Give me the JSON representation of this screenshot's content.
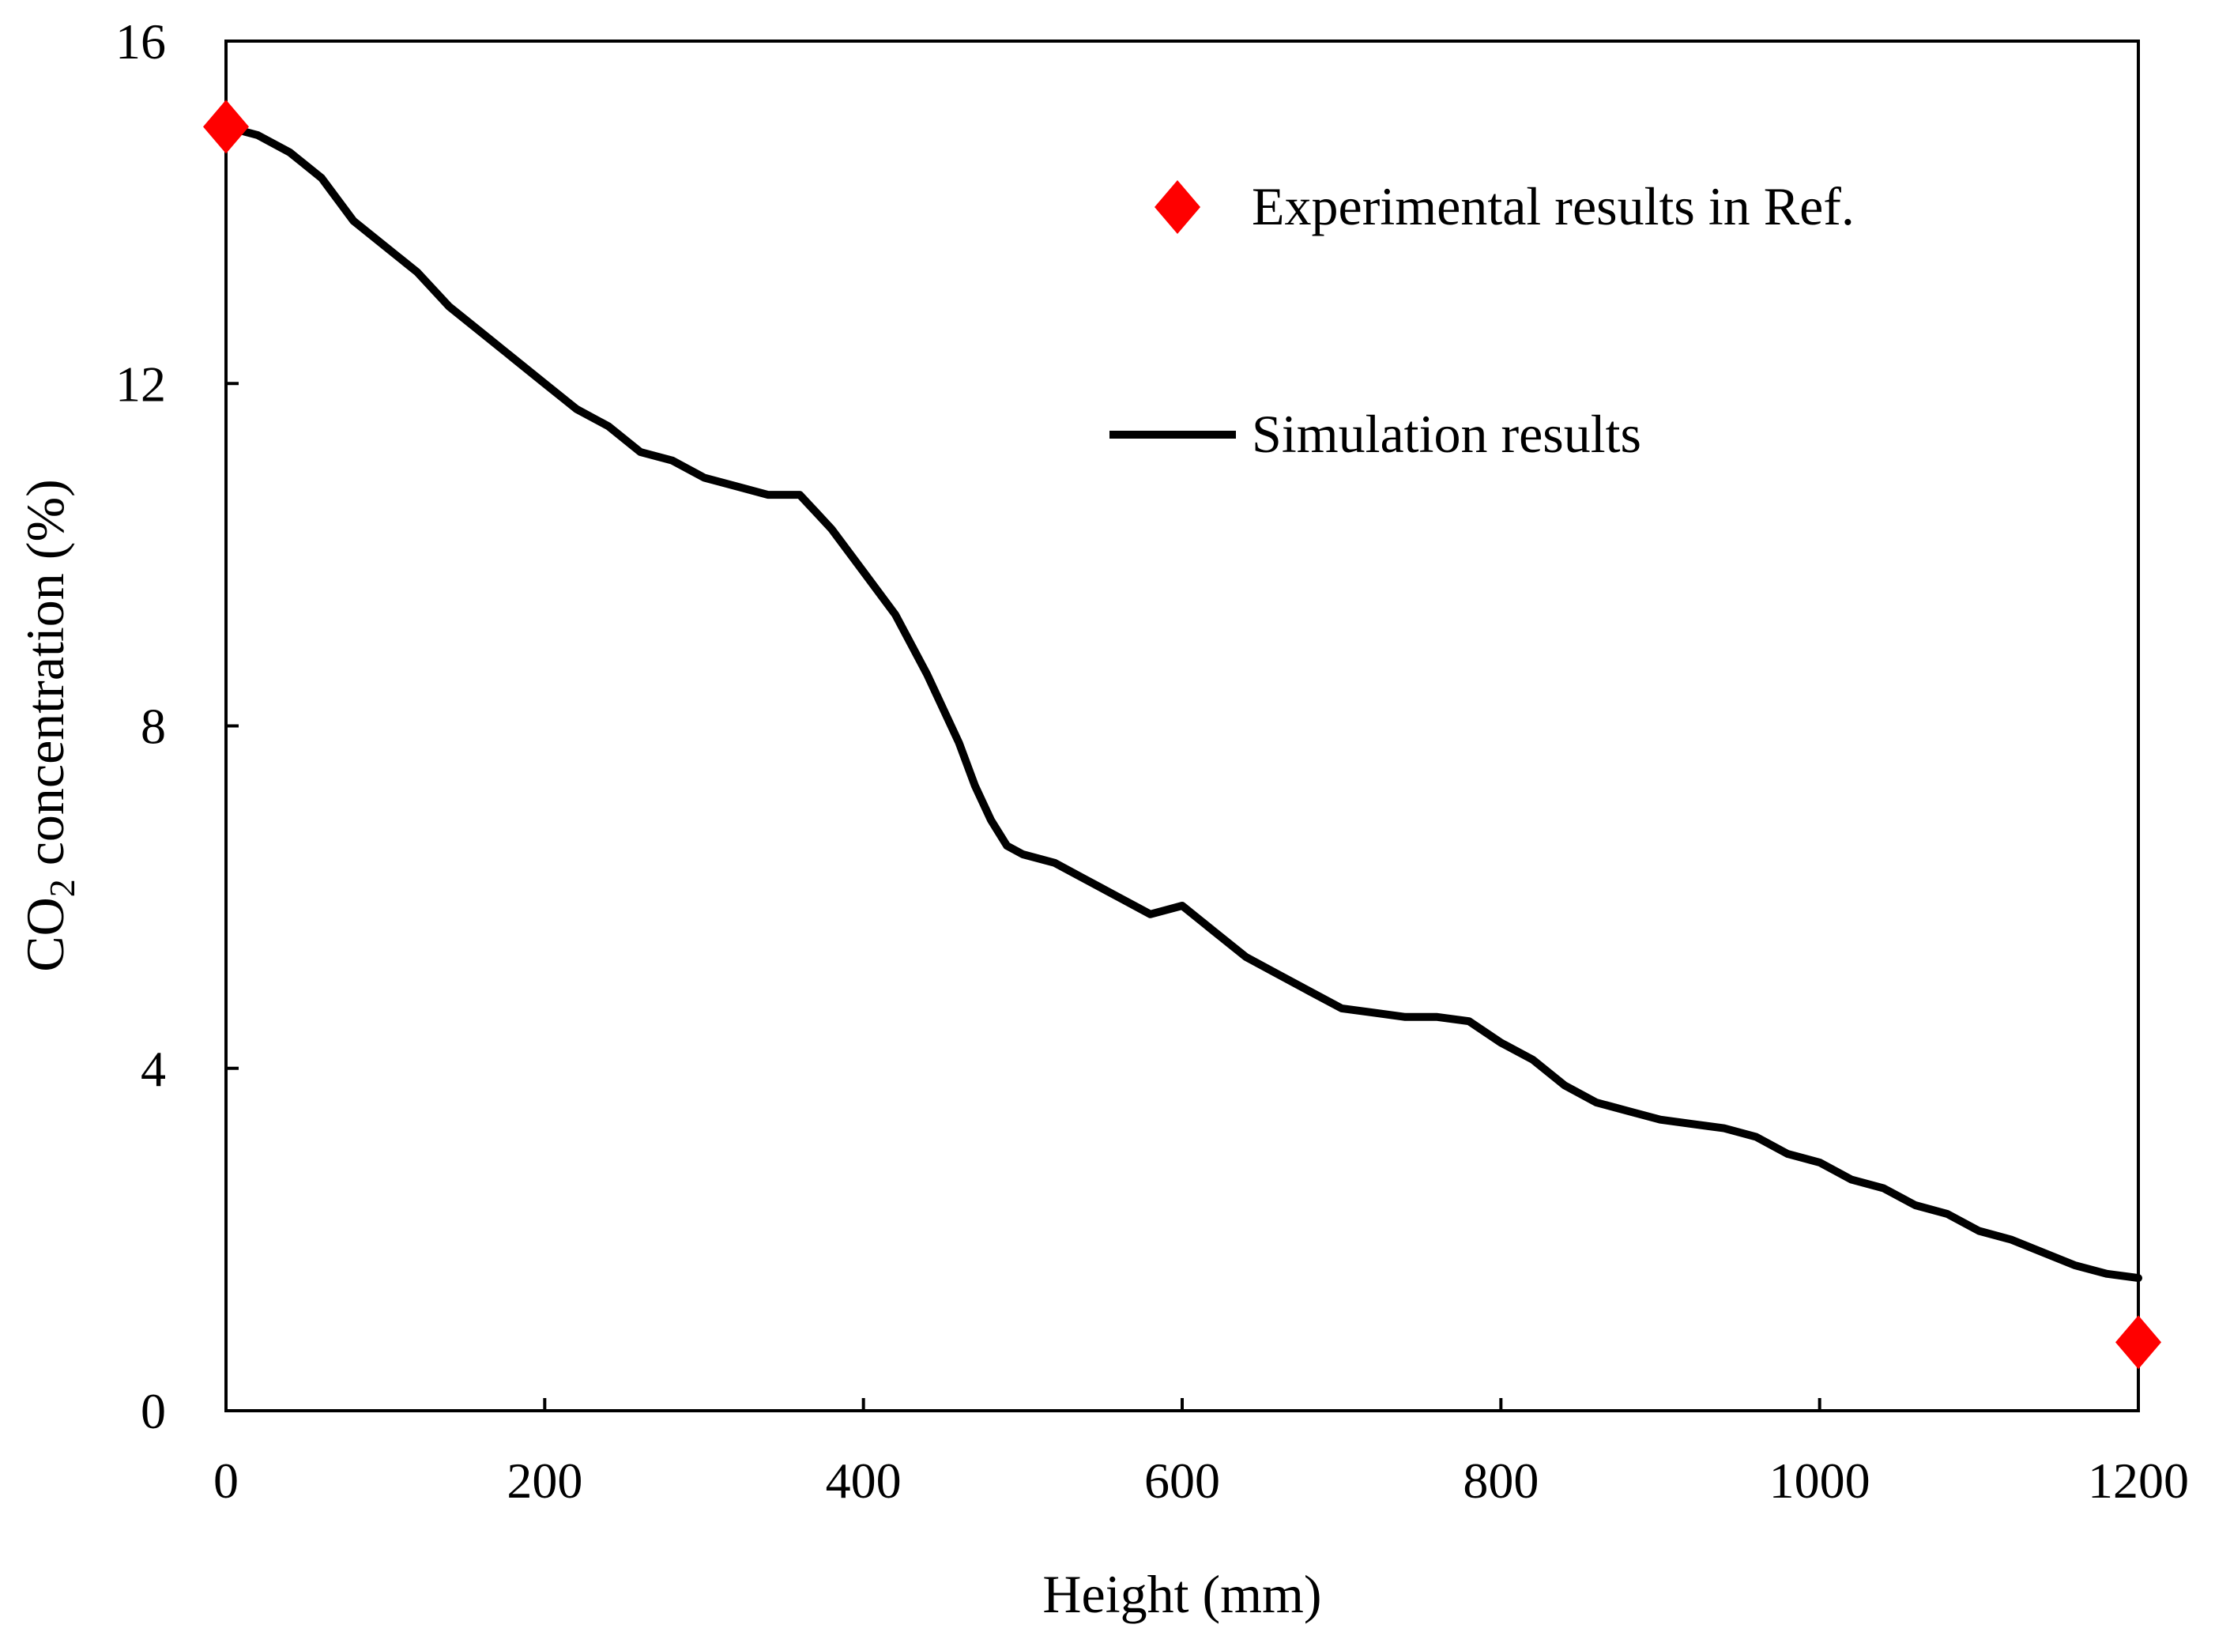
{
  "chart_data": {
    "type": "line",
    "title": "",
    "xlabel": "Height (mm)",
    "ylabel_main": "CO",
    "ylabel_subscript": "2",
    "ylabel_tail": " concentration (%)",
    "xlim": [
      0,
      1200
    ],
    "ylim": [
      0,
      16
    ],
    "xticks": [
      0,
      200,
      400,
      600,
      800,
      1000,
      1200
    ],
    "yticks": [
      0,
      4,
      8,
      12,
      16
    ],
    "grid": false,
    "legend_position": "top-right",
    "colors": {
      "experimental": "#ff0000",
      "simulation": "#000000",
      "axes": "#000000"
    },
    "series": [
      {
        "name": "Experimental results in Ref.",
        "kind": "scatter",
        "marker": "diamond",
        "x": [
          0,
          1200
        ],
        "y": [
          15.0,
          0.8
        ]
      },
      {
        "name": "Simulation results",
        "kind": "line",
        "x": [
          0,
          20,
          40,
          60,
          80,
          100,
          120,
          140,
          160,
          180,
          200,
          220,
          240,
          260,
          280,
          300,
          320,
          340,
          360,
          370,
          380,
          400,
          420,
          440,
          460,
          470,
          480,
          490,
          500,
          520,
          540,
          560,
          580,
          600,
          620,
          640,
          660,
          680,
          700,
          720,
          740,
          760,
          780,
          800,
          820,
          840,
          860,
          880,
          900,
          920,
          940,
          960,
          980,
          1000,
          1020,
          1040,
          1060,
          1080,
          1100,
          1120,
          1140,
          1160,
          1180,
          1200
        ],
        "y": [
          15.0,
          14.9,
          14.7,
          14.4,
          13.9,
          13.6,
          13.3,
          12.9,
          12.6,
          12.3,
          12.0,
          11.7,
          11.5,
          11.2,
          11.1,
          10.9,
          10.8,
          10.7,
          10.7,
          10.5,
          10.3,
          9.8,
          9.3,
          8.6,
          7.8,
          7.3,
          6.9,
          6.6,
          6.5,
          6.4,
          6.2,
          6.0,
          5.8,
          5.9,
          5.6,
          5.3,
          5.1,
          4.9,
          4.7,
          4.65,
          4.6,
          4.6,
          4.55,
          4.3,
          4.1,
          3.8,
          3.6,
          3.5,
          3.4,
          3.35,
          3.3,
          3.2,
          3.0,
          2.9,
          2.7,
          2.6,
          2.4,
          2.3,
          2.1,
          2.0,
          1.85,
          1.7,
          1.6,
          1.55
        ]
      }
    ]
  }
}
